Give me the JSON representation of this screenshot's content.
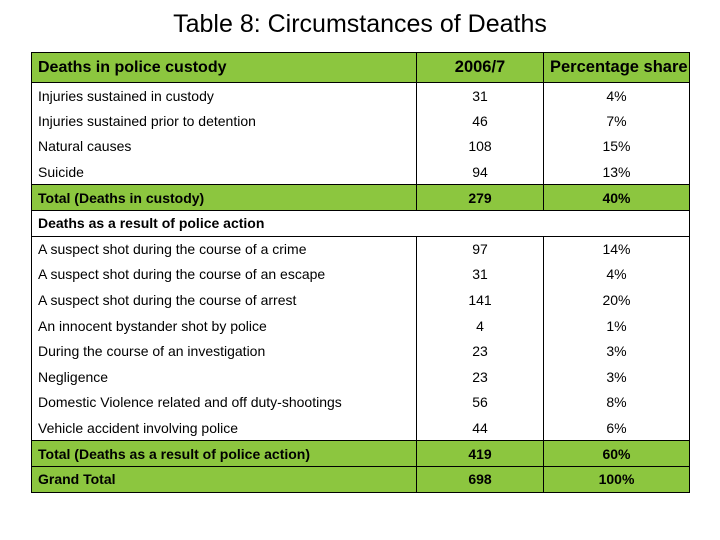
{
  "title": "Table 8: Circumstances of Deaths",
  "header": {
    "label": "Deaths in police custody",
    "year": "2006/7",
    "share": "Percentage share"
  },
  "custody_rows": [
    {
      "label": "Injuries sustained in custody",
      "value": "31",
      "share": "4%"
    },
    {
      "label": "Injuries sustained prior to detention",
      "value": "46",
      "share": "7%"
    },
    {
      "label": "Natural causes",
      "value": "108",
      "share": "15%"
    },
    {
      "label": "Suicide",
      "value": "94",
      "share": "13%"
    }
  ],
  "custody_total": {
    "label": "Total (Deaths in custody)",
    "value": "279",
    "share": "40%"
  },
  "section2": {
    "label": "Deaths as a result of police action"
  },
  "action_rows": [
    {
      "label": "A suspect shot during the course of a crime",
      "value": "97",
      "share": "14%"
    },
    {
      "label": "A suspect shot during the course of an escape",
      "value": "31",
      "share": "4%"
    },
    {
      "label": "A suspect shot during the course of arrest",
      "value": "141",
      "share": "20%"
    },
    {
      "label": "An innocent bystander shot by police",
      "value": "4",
      "share": "1%"
    },
    {
      "label": "During the course of an investigation",
      "value": "23",
      "share": "3%"
    },
    {
      "label": "Negligence",
      "value": "23",
      "share": "3%"
    },
    {
      "label": "Domestic Violence related  and off duty-shootings",
      "value": "56",
      "share": "8%"
    },
    {
      "label": "Vehicle accident involving police",
      "value": "44",
      "share": "6%"
    }
  ],
  "action_total": {
    "label": "Total (Deaths as a result of police action)",
    "value": "419",
    "share": "60%"
  },
  "grand_total": {
    "label": "Grand Total",
    "value": "698",
    "share": "100%"
  },
  "colors": {
    "highlight": "#8cc63f",
    "border": "#000000"
  }
}
